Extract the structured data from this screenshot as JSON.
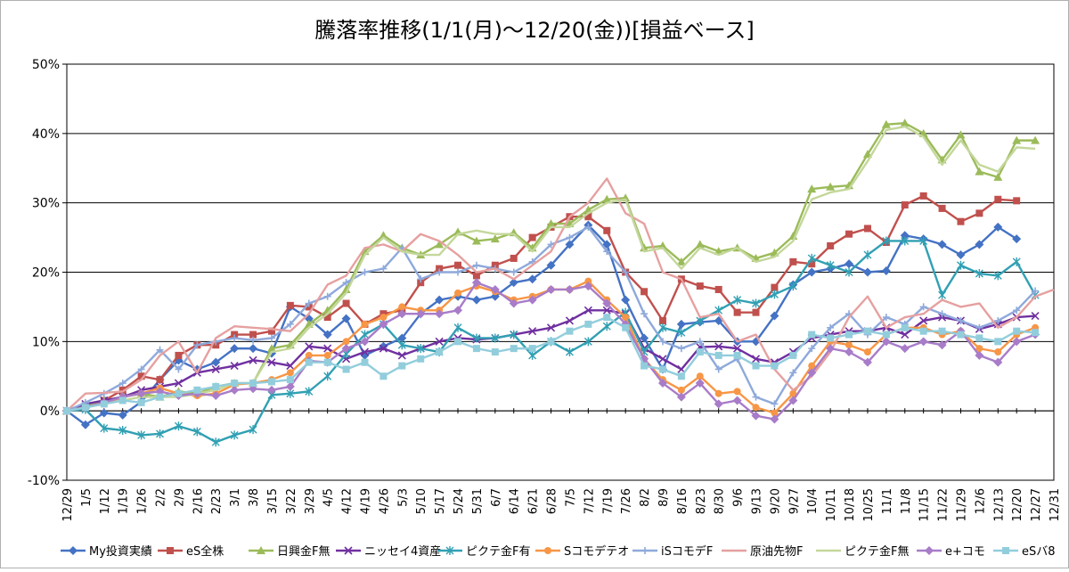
{
  "chart_data": {
    "type": "line",
    "title": "騰落率推移(1/1(月)～12/20(金))[損益ベース]",
    "xlabel": "",
    "ylabel": "",
    "ylim": [
      -0.1,
      0.5
    ],
    "yticks": [
      "-10%",
      "0%",
      "10%",
      "20%",
      "30%",
      "40%",
      "50%"
    ],
    "grid": true,
    "legend": "bottom",
    "x_labels": [
      "12/29",
      "1/5",
      "1/12",
      "1/19",
      "1/26",
      "2/2",
      "2/9",
      "2/16",
      "2/23",
      "3/1",
      "3/8",
      "3/15",
      "3/22",
      "3/29",
      "4/5",
      "4/12",
      "4/19",
      "4/26",
      "5/3",
      "5/10",
      "5/17",
      "5/24",
      "5/31",
      "6/7",
      "6/14",
      "6/21",
      "6/28",
      "7/5",
      "7/12",
      "7/19",
      "7/26",
      "8/2",
      "8/9",
      "8/16",
      "8/23",
      "8/30",
      "9/6",
      "9/13",
      "9/20",
      "9/27",
      "10/4",
      "10/11",
      "10/18",
      "10/25",
      "11/1",
      "11/8",
      "11/15",
      "11/22",
      "11/29",
      "12/6",
      "12/13",
      "12/20",
      "12/27",
      "12/31"
    ],
    "series": [
      {
        "name": "My投資実績",
        "color": "#4472C4",
        "marker": "diamond",
        "values": [
          0,
          -0.02,
          -0.003,
          -0.006,
          0.013,
          0.045,
          0.073,
          0.06,
          0.07,
          0.09,
          0.09,
          0.083,
          0.15,
          0.133,
          0.11,
          0.133,
          0.08,
          0.093,
          0.105,
          0.14,
          0.16,
          0.165,
          0.16,
          0.165,
          0.185,
          0.19,
          0.21,
          0.24,
          0.268,
          0.24,
          0.16,
          0.105,
          0.06,
          0.125,
          0.128,
          0.13,
          0.1,
          0.1,
          0.137,
          0.182,
          0.2,
          0.205,
          0.212,
          0.2,
          0.202,
          0.253,
          0.248,
          0.24,
          0.225,
          0.24,
          0.265,
          0.248
        ]
      },
      {
        "name": "eS全株",
        "color": "#C0504D",
        "marker": "square",
        "values": [
          0,
          0.008,
          0.015,
          0.03,
          0.05,
          0.045,
          0.08,
          0.095,
          0.095,
          0.11,
          0.11,
          0.115,
          0.152,
          0.15,
          0.135,
          0.155,
          0.125,
          0.14,
          0.145,
          0.185,
          0.205,
          0.21,
          0.195,
          0.21,
          0.22,
          0.25,
          0.265,
          0.28,
          0.28,
          0.26,
          0.2,
          0.172,
          0.13,
          0.19,
          0.18,
          0.175,
          0.142,
          0.142,
          0.178,
          0.215,
          0.212,
          0.238,
          0.255,
          0.263,
          0.243,
          0.297,
          0.31,
          0.292,
          0.273,
          0.285,
          0.305,
          0.303
        ]
      },
      {
        "name": "日興金F無",
        "color": "#9BBB59",
        "marker": "triangle",
        "values": [
          0,
          0.008,
          0.015,
          0.02,
          0.025,
          0.02,
          0.028,
          0.025,
          0.035,
          0.04,
          0.04,
          0.09,
          0.095,
          0.125,
          0.145,
          0.175,
          0.23,
          0.253,
          0.235,
          0.225,
          0.24,
          0.258,
          0.245,
          0.248,
          0.257,
          0.235,
          0.27,
          0.27,
          0.29,
          0.305,
          0.307,
          0.235,
          0.238,
          0.215,
          0.24,
          0.23,
          0.235,
          0.22,
          0.228,
          0.252,
          0.32,
          0.323,
          0.325,
          0.37,
          0.413,
          0.415,
          0.4,
          0.362,
          0.398,
          0.345,
          0.337,
          0.39,
          0.39
        ]
      },
      {
        "name": "ニッセイ4資産",
        "color": "#7030A0",
        "marker": "x",
        "values": [
          0,
          0.01,
          0.015,
          0.02,
          0.03,
          0.035,
          0.04,
          0.055,
          0.06,
          0.065,
          0.073,
          0.07,
          0.065,
          0.093,
          0.09,
          0.075,
          0.085,
          0.09,
          0.08,
          0.09,
          0.1,
          0.105,
          0.103,
          0.105,
          0.11,
          0.115,
          0.12,
          0.13,
          0.145,
          0.145,
          0.14,
          0.09,
          0.075,
          0.06,
          0.092,
          0.093,
          0.09,
          0.075,
          0.07,
          0.085,
          0.105,
          0.11,
          0.115,
          0.115,
          0.12,
          0.11,
          0.13,
          0.135,
          0.13,
          0.118,
          0.125,
          0.135,
          0.137
        ]
      },
      {
        "name": "ピクテ金F有",
        "color": "#31A0B3",
        "marker": "star",
        "values": [
          0,
          0.002,
          -0.025,
          -0.028,
          -0.035,
          -0.033,
          -0.022,
          -0.03,
          -0.045,
          -0.035,
          -0.027,
          0.023,
          0.025,
          0.028,
          0.05,
          0.082,
          0.11,
          0.125,
          0.095,
          0.09,
          0.085,
          0.12,
          0.105,
          0.105,
          0.11,
          0.08,
          0.1,
          0.085,
          0.1,
          0.122,
          0.142,
          0.085,
          0.12,
          0.113,
          0.13,
          0.145,
          0.16,
          0.155,
          0.168,
          0.18,
          0.22,
          0.21,
          0.2,
          0.225,
          0.245,
          0.245,
          0.245,
          0.167,
          0.21,
          0.198,
          0.195,
          0.215,
          0.167
        ]
      },
      {
        "name": "Sコモデテオ",
        "color": "#F79646",
        "marker": "circle",
        "values": [
          0,
          0.005,
          0.01,
          0.02,
          0.025,
          0.033,
          0.025,
          0.022,
          0.025,
          0.038,
          0.04,
          0.045,
          0.055,
          0.08,
          0.08,
          0.1,
          0.125,
          0.135,
          0.15,
          0.145,
          0.145,
          0.17,
          0.18,
          0.172,
          0.16,
          0.165,
          0.175,
          0.175,
          0.187,
          0.16,
          0.135,
          0.075,
          0.045,
          0.03,
          0.05,
          0.025,
          0.028,
          0.005,
          -0.003,
          0.025,
          0.065,
          0.1,
          0.095,
          0.085,
          0.11,
          0.12,
          0.12,
          0.11,
          0.115,
          0.09,
          0.085,
          0.11,
          0.12
        ]
      },
      {
        "name": "iSコモデF",
        "color": "#8EA9DB",
        "marker": "plus",
        "values": [
          0,
          0.012,
          0.025,
          0.04,
          0.06,
          0.088,
          0.06,
          0.095,
          0.1,
          0.105,
          0.102,
          0.105,
          0.125,
          0.155,
          0.165,
          0.185,
          0.2,
          0.205,
          0.235,
          0.19,
          0.2,
          0.2,
          0.21,
          0.205,
          0.2,
          0.215,
          0.24,
          0.25,
          0.265,
          0.23,
          0.2,
          0.14,
          0.1,
          0.09,
          0.1,
          0.06,
          0.075,
          0.02,
          0.01,
          0.055,
          0.09,
          0.12,
          0.14,
          0.11,
          0.135,
          0.125,
          0.15,
          0.14,
          0.13,
          0.12,
          0.13,
          0.145,
          0.173
        ]
      },
      {
        "name": "原油先物F",
        "color": "#E6A0A0",
        "marker": "none",
        "values": [
          0,
          0.025,
          0.026,
          0.028,
          0.045,
          0.08,
          0.1,
          0.055,
          0.105,
          0.122,
          0.12,
          0.118,
          0.115,
          0.14,
          0.182,
          0.195,
          0.235,
          0.24,
          0.23,
          0.255,
          0.245,
          0.225,
          0.2,
          0.205,
          0.19,
          0.21,
          0.23,
          0.28,
          0.3,
          0.335,
          0.285,
          0.27,
          0.2,
          0.19,
          0.135,
          0.14,
          0.1,
          0.11,
          0.06,
          0.03,
          0.05,
          0.085,
          0.135,
          0.165,
          0.12,
          0.135,
          0.14,
          0.16,
          0.15,
          0.155,
          0.12,
          0.135,
          0.165,
          0.175
        ]
      },
      {
        "name": "ピクテ金F無",
        "color": "#C4D79B",
        "marker": "none",
        "values": [
          0,
          0.005,
          0.01,
          0.015,
          0.02,
          0.02,
          0.02,
          0.025,
          0.03,
          0.04,
          0.04,
          0.085,
          0.09,
          0.12,
          0.14,
          0.17,
          0.225,
          0.25,
          0.23,
          0.225,
          0.225,
          0.255,
          0.26,
          0.255,
          0.255,
          0.23,
          0.265,
          0.265,
          0.285,
          0.3,
          0.305,
          0.23,
          0.235,
          0.205,
          0.235,
          0.225,
          0.235,
          0.215,
          0.222,
          0.245,
          0.305,
          0.315,
          0.32,
          0.36,
          0.405,
          0.41,
          0.395,
          0.355,
          0.39,
          0.355,
          0.345,
          0.38,
          0.378
        ]
      },
      {
        "name": "e+コモ",
        "color": "#A87CC8",
        "marker": "diamond",
        "values": [
          0,
          0.005,
          0.012,
          0.02,
          0.025,
          0.028,
          0.022,
          0.025,
          0.022,
          0.03,
          0.032,
          0.03,
          0.035,
          0.072,
          0.07,
          0.09,
          0.1,
          0.125,
          0.14,
          0.14,
          0.14,
          0.145,
          0.185,
          0.175,
          0.155,
          0.16,
          0.175,
          0.175,
          0.18,
          0.155,
          0.125,
          0.075,
          0.04,
          0.02,
          0.04,
          0.01,
          0.015,
          -0.007,
          -0.012,
          0.015,
          0.055,
          0.09,
          0.085,
          0.07,
          0.1,
          0.09,
          0.1,
          0.095,
          0.115,
          0.08,
          0.07,
          0.1,
          0.11
        ]
      },
      {
        "name": "eSバ8",
        "color": "#92CDDC",
        "marker": "square",
        "values": [
          0,
          0.005,
          0.01,
          0.015,
          0.012,
          0.02,
          0.025,
          0.03,
          0.035,
          0.04,
          0.04,
          0.042,
          0.045,
          0.07,
          0.07,
          0.06,
          0.07,
          0.05,
          0.065,
          0.075,
          0.085,
          0.1,
          0.09,
          0.085,
          0.09,
          0.09,
          0.1,
          0.115,
          0.125,
          0.135,
          0.12,
          0.065,
          0.06,
          0.05,
          0.085,
          0.08,
          0.08,
          0.065,
          0.065,
          0.08,
          0.11,
          0.105,
          0.11,
          0.115,
          0.11,
          0.12,
          0.115,
          0.115,
          0.11,
          0.105,
          0.1,
          0.115,
          0.113
        ]
      }
    ]
  }
}
